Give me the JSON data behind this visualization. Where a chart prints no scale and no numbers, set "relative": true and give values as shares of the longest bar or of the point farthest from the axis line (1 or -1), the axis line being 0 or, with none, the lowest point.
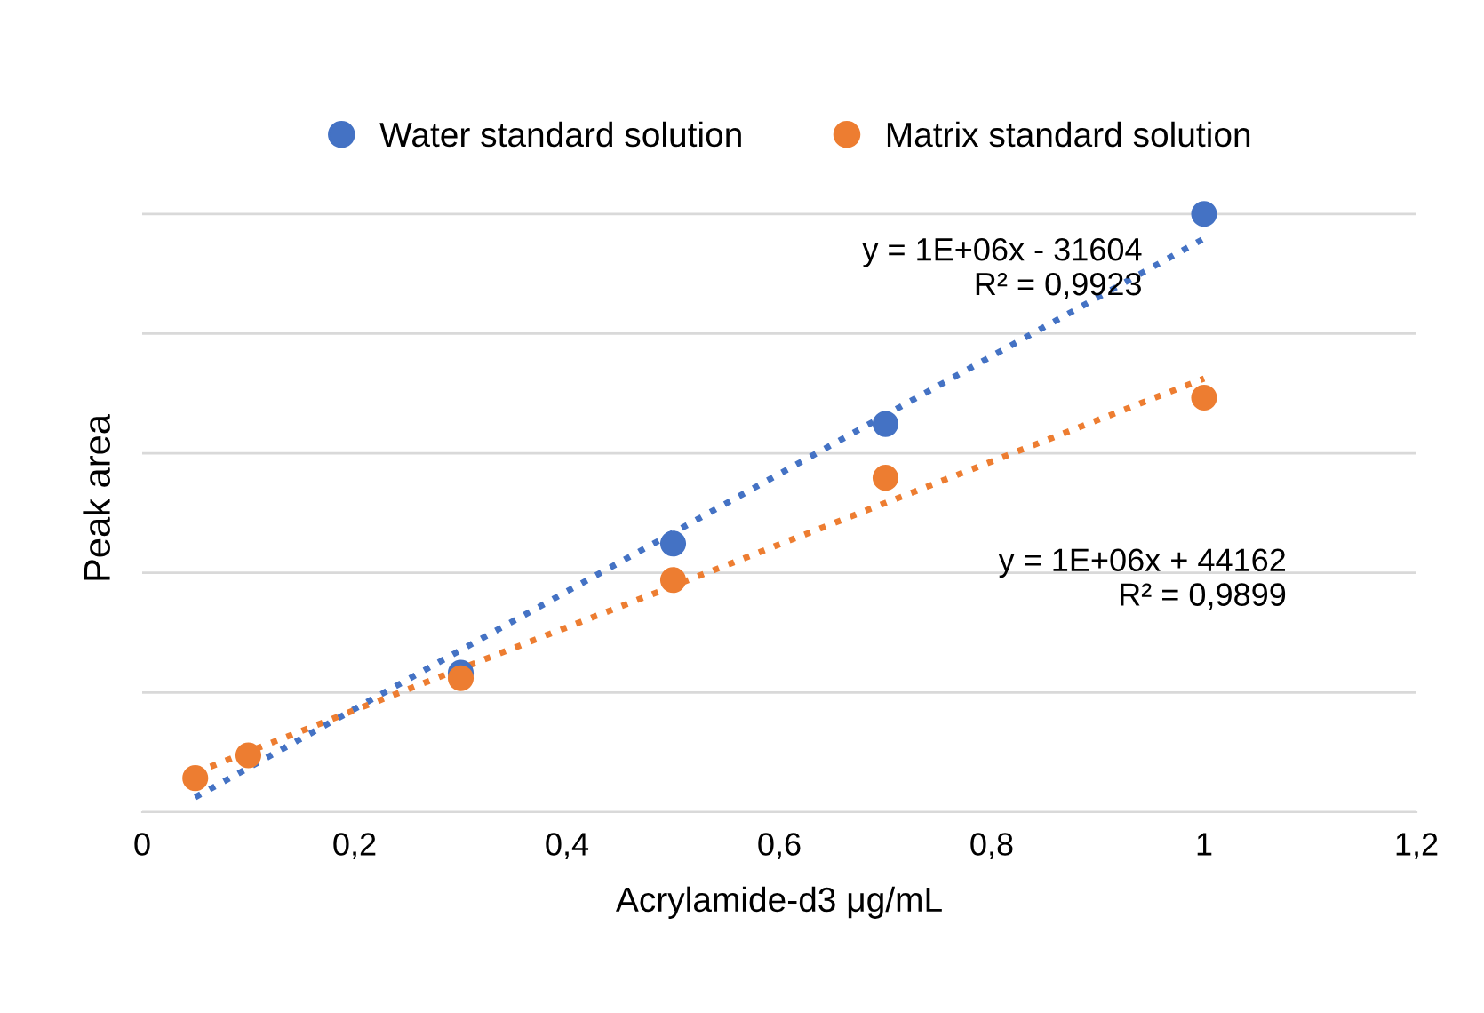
{
  "chart_data": {
    "type": "scatter",
    "relative": true,
    "xlabel": "Acrylamide-d3 μg/mL",
    "ylabel": "Peak area",
    "xlim": [
      0,
      1.2
    ],
    "xticks": [
      0,
      {
        "value": 0.2,
        "label": "0,2"
      },
      {
        "value": 0.4,
        "label": "0,4"
      },
      {
        "value": 0.6,
        "label": "0,6"
      },
      {
        "value": 0.8,
        "label": "0,8"
      },
      1,
      {
        "value": 1.2,
        "label": "1,2"
      }
    ],
    "x": [
      0.05,
      0.1,
      0.3,
      0.5,
      0.7,
      1
    ],
    "grid": "y",
    "legend": "top",
    "marker": "circle",
    "series": [
      {
        "name": "Water standard solution",
        "color": "#4472c4",
        "values": [
          null,
          null,
          0.233,
          0.449,
          0.649,
          1
        ]
      },
      {
        "name": "Matrix standard solution",
        "color": "#ed7d31",
        "values": [
          0.057,
          0.095,
          0.224,
          0.388,
          0.559,
          0.693
        ]
      },
      {
        "type": "line",
        "color": "#4472c4",
        "line_style": "dotted",
        "marker": "none",
        "values": [
          0.025,
          0.074,
          0.271,
          0.467,
          0.664,
          0.959
        ]
      },
      {
        "type": "line",
        "color": "#ed7d31",
        "line_style": "dotted",
        "marker": "none",
        "values": [
          0.066,
          0.101,
          0.24,
          0.378,
          0.517,
          0.725
        ]
      }
    ],
    "annotations": [
      "y = 1E+06x - 31604\nR² = 0,9923",
      "y = 1E+06x + 44162\nR² = 0,9899"
    ]
  }
}
